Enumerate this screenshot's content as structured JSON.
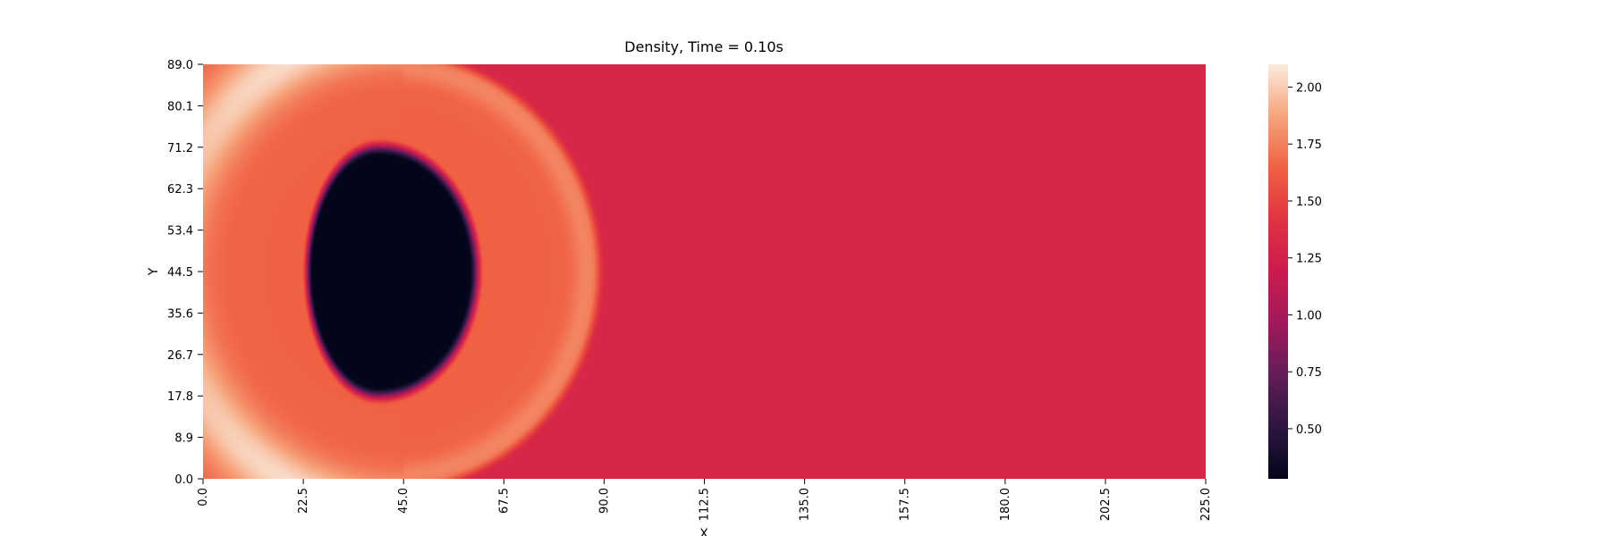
{
  "chart_data": {
    "type": "heatmap",
    "title": "Density, Time = 0.10s",
    "xlabel": "X",
    "ylabel": "Y",
    "x_ticks": [
      "0.0",
      "22.5",
      "45.0",
      "67.5",
      "90.0",
      "112.5",
      "135.0",
      "157.5",
      "180.0",
      "202.5",
      "225.0"
    ],
    "y_ticks": [
      "0.0",
      "8.9",
      "17.8",
      "26.7",
      "35.6",
      "44.5",
      "53.4",
      "62.3",
      "71.2",
      "80.1",
      "89.0"
    ],
    "xlim": [
      0,
      225
    ],
    "ylim": [
      0,
      89
    ],
    "colorbar": {
      "ticks": [
        "0.50",
        "0.75",
        "1.00",
        "1.25",
        "1.50",
        "1.75",
        "2.00"
      ],
      "range": [
        0.28,
        2.1
      ]
    },
    "colormap": [
      "#03051a",
      "#2d1640",
      "#621c58",
      "#a11a5b",
      "#cb1b4f",
      "#e13342",
      "#f06043",
      "#f6a47c",
      "#faebdd"
    ],
    "field": {
      "ambient_density": 1.3,
      "low_density_region": {
        "center_x": 39.5,
        "center_y": 44.5,
        "radius_x_left": 16.5,
        "radius_x_right": 22.5,
        "radius_y": 27.5,
        "density": 0.28
      },
      "shock_front": {
        "center_x": 42,
        "center_y": 44.5,
        "radius": 47,
        "inner_density": 1.65
      },
      "interface_x": 45,
      "high_density_band": {
        "center_x": 45,
        "center_y": 44.5,
        "radius": 52,
        "peak_density": 2.05
      }
    }
  }
}
